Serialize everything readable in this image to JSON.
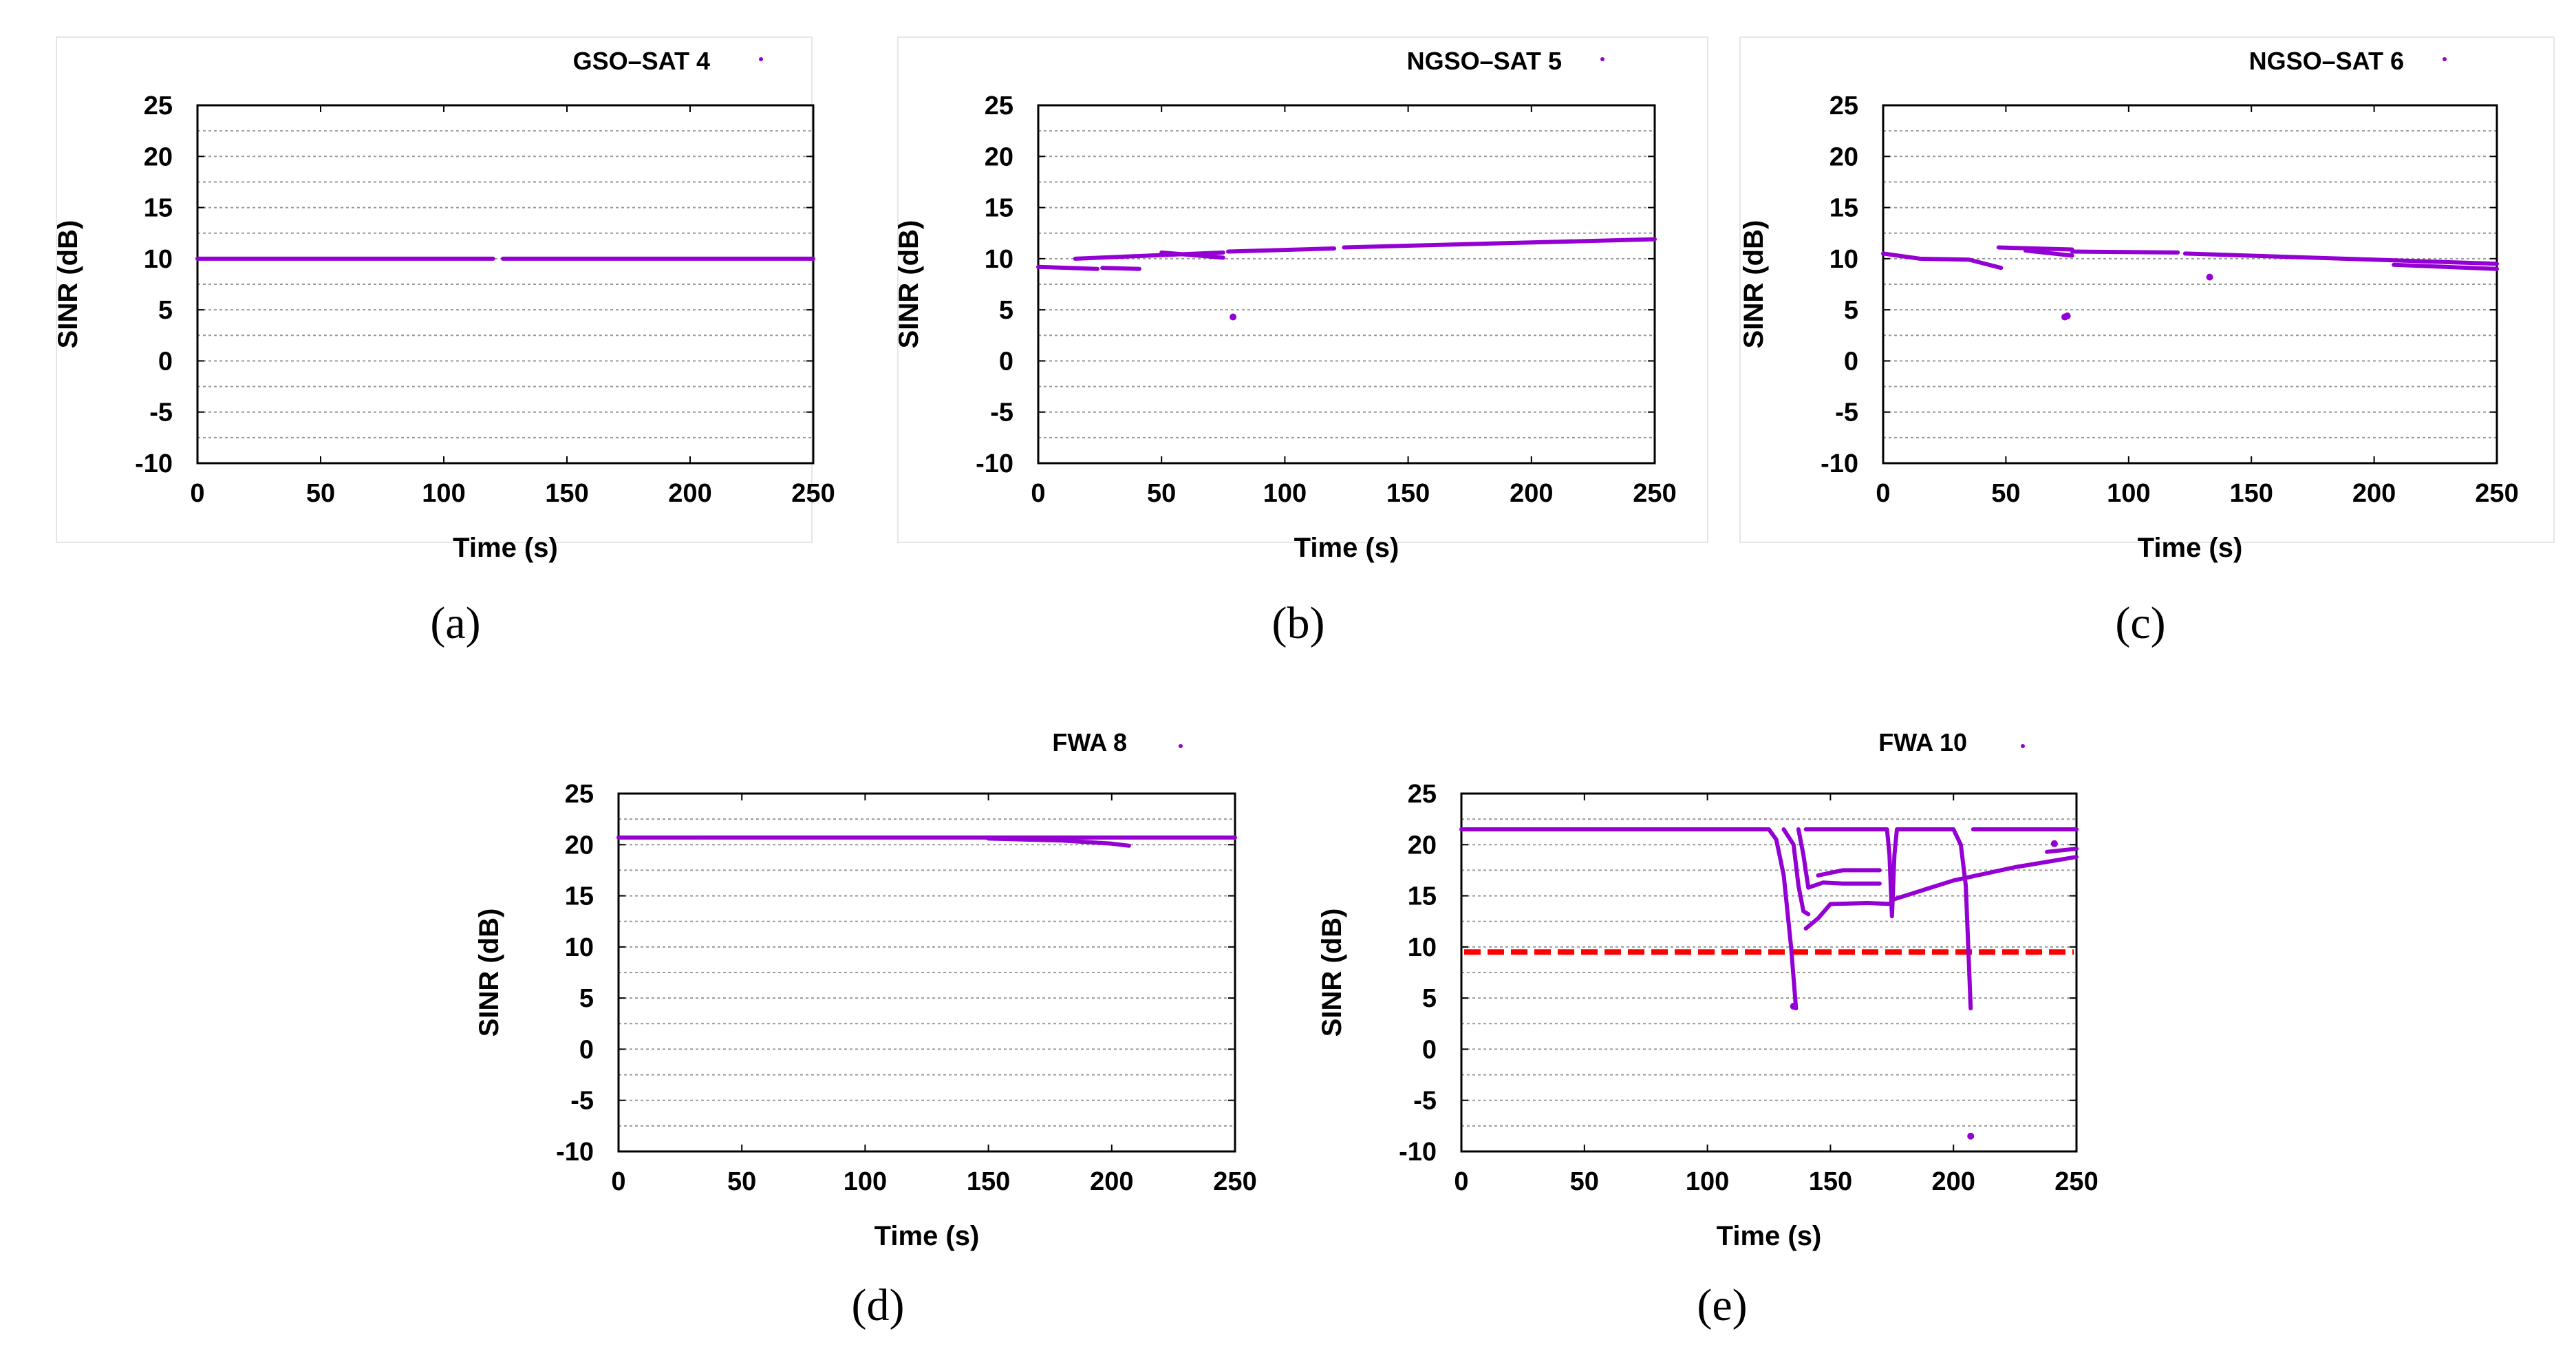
{
  "colors": {
    "series": "#9400d3",
    "threshold": "#ff0000",
    "grid": "#9a9a9a"
  },
  "chart_data": [
    {
      "type": "scatter",
      "caption": "(a)",
      "legend": "GSO–SAT 4",
      "xlabel": "Time (s)",
      "ylabel": "SINR (dB)",
      "xlim": [
        0,
        250
      ],
      "ylim": [
        -10,
        25
      ],
      "xticks": [
        "0",
        "50",
        "100",
        "150",
        "200",
        "250"
      ],
      "yticks": [
        "25",
        "20",
        "15",
        "10",
        "5",
        "0",
        "-5",
        "-10"
      ],
      "series": [
        {
          "name": "GSO–SAT 4",
          "segments": [
            [
              [
                0,
                10
              ],
              [
                120,
                10
              ]
            ],
            [
              [
                124,
                10
              ],
              [
                250,
                10
              ]
            ]
          ]
        }
      ],
      "points": []
    },
    {
      "type": "scatter",
      "caption": "(b)",
      "legend": "NGSO–SAT 5",
      "xlabel": "Time (s)",
      "ylabel": "SINR (dB)",
      "xlim": [
        0,
        250
      ],
      "ylim": [
        -10,
        25
      ],
      "xticks": [
        "0",
        "50",
        "100",
        "150",
        "200",
        "250"
      ],
      "yticks": [
        "25",
        "20",
        "15",
        "10",
        "5",
        "0",
        "-5",
        "-10"
      ],
      "series": [
        {
          "name": "NGSO–SAT 5",
          "segments": [
            [
              [
                0,
                9.2
              ],
              [
                24,
                9.0
              ]
            ],
            [
              [
                26,
                9.1
              ],
              [
                41,
                9.0
              ]
            ],
            [
              [
                15,
                10.0
              ],
              [
                45,
                10.3
              ],
              [
                75,
                10.6
              ]
            ],
            [
              [
                50,
                10.6
              ],
              [
                75,
                10.1
              ]
            ],
            [
              [
                77,
                10.7
              ],
              [
                120,
                11.0
              ]
            ],
            [
              [
                124,
                11.1
              ],
              [
                170,
                11.4
              ],
              [
                250,
                11.9
              ]
            ]
          ]
        }
      ],
      "points": [
        [
          79,
          4.3
        ]
      ]
    },
    {
      "type": "scatter",
      "caption": "(c)",
      "legend": "NGSO–SAT 6",
      "xlabel": "Time (s)",
      "ylabel": "SINR (dB)",
      "xlim": [
        0,
        250
      ],
      "ylim": [
        -10,
        25
      ],
      "xticks": [
        "0",
        "50",
        "100",
        "150",
        "200",
        "250"
      ],
      "yticks": [
        "25",
        "20",
        "15",
        "10",
        "5",
        "0",
        "-5",
        "-10"
      ],
      "series": [
        {
          "name": "NGSO–SAT 6",
          "segments": [
            [
              [
                0,
                10.5
              ],
              [
                15,
                10.0
              ],
              [
                35,
                9.9
              ],
              [
                48,
                9.1
              ]
            ],
            [
              [
                47,
                11.1
              ],
              [
                77,
                10.9
              ]
            ],
            [
              [
                58,
                10.8
              ],
              [
                77,
                10.3
              ]
            ],
            [
              [
                77,
                10.7
              ],
              [
                120,
                10.6
              ]
            ],
            [
              [
                123,
                10.5
              ],
              [
                200,
                9.9
              ],
              [
                250,
                9.5
              ]
            ],
            [
              [
                208,
                9.4
              ],
              [
                250,
                9.0
              ]
            ]
          ]
        }
      ],
      "points": [
        [
          74,
          4.3
        ],
        [
          75,
          4.4
        ],
        [
          133,
          8.2
        ]
      ]
    },
    {
      "type": "scatter",
      "caption": "(d)",
      "legend": "FWA 8",
      "xlabel": "Time (s)",
      "ylabel": "SINR (dB)",
      "xlim": [
        0,
        250
      ],
      "ylim": [
        -10,
        25
      ],
      "xticks": [
        "0",
        "50",
        "100",
        "150",
        "200",
        "250"
      ],
      "yticks": [
        "25",
        "20",
        "15",
        "10",
        "5",
        "0",
        "-5",
        "-10"
      ],
      "series": [
        {
          "name": "FWA 8",
          "segments": [
            [
              [
                0,
                20.7
              ],
              [
                250,
                20.7
              ]
            ],
            [
              [
                150,
                20.6
              ],
              [
                180,
                20.4
              ],
              [
                200,
                20.1
              ],
              [
                207,
                19.9
              ]
            ]
          ]
        }
      ],
      "points": []
    },
    {
      "type": "scatter",
      "caption": "(e)",
      "legend": "FWA 10",
      "xlabel": "Time (s)",
      "ylabel": "SINR (dB)",
      "xlim": [
        0,
        250
      ],
      "ylim": [
        -10,
        25
      ],
      "xticks": [
        "0",
        "50",
        "100",
        "150",
        "200",
        "250"
      ],
      "yticks": [
        "25",
        "20",
        "15",
        "10",
        "5",
        "0",
        "-5",
        "-10"
      ],
      "threshold": 9.5,
      "series": [
        {
          "name": "FWA 10",
          "segments": [
            [
              [
                0,
                21.5
              ],
              [
                125,
                21.5
              ],
              [
                128,
                20.5
              ],
              [
                131,
                17
              ],
              [
                134,
                10
              ],
              [
                136,
                4
              ]
            ],
            [
              [
                131,
                21.5
              ],
              [
                135,
                20
              ],
              [
                137,
                16
              ],
              [
                139,
                13.5
              ],
              [
                141,
                13.2
              ]
            ],
            [
              [
                137,
                21.5
              ],
              [
                139,
                19
              ],
              [
                141,
                15.8
              ],
              [
                147,
                16.3
              ],
              [
                155,
                16.2
              ],
              [
                170,
                16.2
              ]
            ],
            [
              [
                140,
                11.8
              ],
              [
                145,
                12.8
              ],
              [
                150,
                14.2
              ],
              [
                165,
                14.3
              ],
              [
                175,
                14.2
              ]
            ],
            [
              [
                145,
                17.0
              ],
              [
                155,
                17.5
              ],
              [
                170,
                17.5
              ]
            ],
            [
              [
                140,
                21.5
              ],
              [
                173,
                21.5
              ],
              [
                174,
                19
              ],
              [
                175,
                13
              ],
              [
                176,
                19
              ],
              [
                177,
                21.5
              ],
              [
                200,
                21.5
              ],
              [
                203,
                20
              ],
              [
                205,
                16
              ],
              [
                206,
                10
              ],
              [
                207,
                4
              ]
            ],
            [
              [
                175,
                14.6
              ],
              [
                200,
                16.5
              ],
              [
                225,
                17.8
              ],
              [
                250,
                18.8
              ]
            ],
            [
              [
                208,
                21.5
              ],
              [
                250,
                21.5
              ]
            ],
            [
              [
                238,
                19.3
              ],
              [
                250,
                19.6
              ]
            ]
          ]
        }
      ],
      "points": [
        [
          207,
          -8.5
        ],
        [
          241,
          20.1
        ],
        [
          135,
          4.2
        ]
      ]
    }
  ]
}
